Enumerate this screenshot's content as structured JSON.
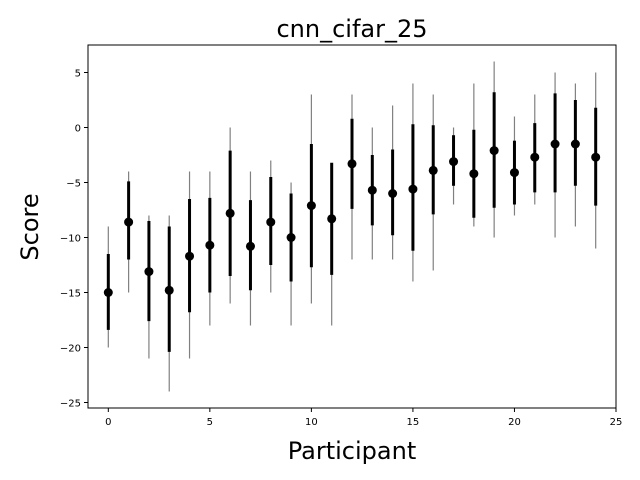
{
  "chart_data": {
    "type": "errorbar",
    "title": "cnn_cifar_25",
    "x_label": "Participant",
    "y_label": "Score",
    "x": [
      0,
      1,
      2,
      3,
      4,
      5,
      6,
      7,
      8,
      9,
      10,
      11,
      12,
      13,
      14,
      15,
      16,
      17,
      18,
      19,
      20,
      21,
      22,
      23,
      24
    ],
    "values": [
      -15,
      -8.6,
      -13.1,
      -14.8,
      -11.7,
      -10.7,
      -7.8,
      -10.8,
      -8.6,
      -10,
      -7.1,
      -8.3,
      -3.3,
      -5.7,
      -6,
      -5.6,
      -3.9,
      -3.1,
      -4.2,
      -2.1,
      -4.1,
      -2.7,
      -1.5,
      -1.5,
      -2.7
    ],
    "bar_low": [
      -18.4,
      -12,
      -17.6,
      -20.4,
      -16.8,
      -15,
      -13.5,
      -14.8,
      -12.5,
      -14,
      -12.7,
      -13.4,
      -7.4,
      -8.9,
      -9.8,
      -11.2,
      -7.9,
      -5.3,
      -8.2,
      -7.3,
      -7,
      -5.9,
      -5.9,
      -5.3,
      -7.1
    ],
    "bar_high": [
      -11.5,
      -4.9,
      -8.5,
      -9,
      -6.5,
      -6.4,
      -2.1,
      -6.6,
      -4.5,
      -6,
      -1.5,
      -3.2,
      0.8,
      -2.5,
      -2,
      0.3,
      0.2,
      -0.7,
      -0.2,
      3.2,
      -1.2,
      0.4,
      3.1,
      2.5,
      1.8
    ],
    "whisker_low": [
      -20,
      -15,
      -21,
      -24,
      -21,
      -18,
      -16,
      -18,
      -15,
      -18,
      -16,
      -18,
      -12,
      -12,
      -12,
      -14,
      -13,
      -7,
      -9,
      -10,
      -8,
      -7,
      -10,
      -9,
      -11
    ],
    "whisker_high": [
      -9,
      -4,
      -8,
      -8,
      -4,
      -4,
      0,
      -4,
      -3,
      -5,
      3,
      -4,
      3,
      0,
      2,
      4,
      3,
      0,
      4,
      6,
      1,
      3,
      5,
      4,
      5
    ],
    "point_color": "#000000",
    "bar_color": "#000000",
    "whisker_color": "#808080",
    "xlim": [
      -1,
      25
    ],
    "ylim": [
      -25.5,
      7.5
    ],
    "xticks": [
      0,
      5,
      10,
      15,
      20,
      25
    ],
    "yticks": [
      5,
      0,
      {
        "value": -5,
        "label": "−5"
      },
      {
        "value": -10,
        "label": "−10"
      },
      {
        "value": -15,
        "label": "−15"
      },
      {
        "value": -20,
        "label": "−20"
      },
      {
        "value": -25,
        "label": "−25"
      }
    ]
  }
}
